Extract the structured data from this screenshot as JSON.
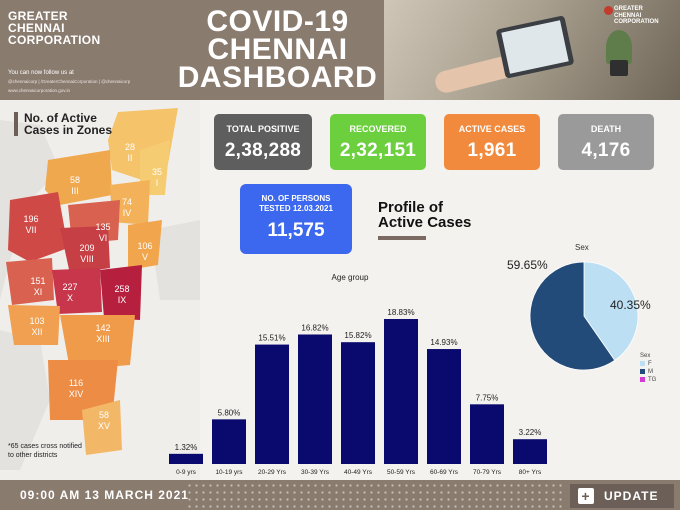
{
  "header": {
    "org_line1": "GREATER",
    "org_line2": "CHENNAI",
    "org_line3": "CORPORATION",
    "follow_text": "You can now follow us at",
    "social_handles": "@chennaicorp  |  /GreaterChennaiCorporation  |  @chennaicorp",
    "website": "www.chennaicorporation.gov.in",
    "title_line1": "COVID-19",
    "title_line2": "CHENNAI",
    "title_line3": "DASHBOARD",
    "corner_logo_line1": "GREATER",
    "corner_logo_line2": "CHENNAI",
    "corner_logo_line3": "CORPORATION"
  },
  "map": {
    "title": "No. of Active Cases in Zones",
    "note": "*65 cases cross notified to other districts",
    "zones": [
      {
        "num": "28",
        "name": "II"
      },
      {
        "num": "35",
        "name": "I"
      },
      {
        "num": "58",
        "name": "III"
      },
      {
        "num": "74",
        "name": "IV"
      },
      {
        "num": "196",
        "name": "VII"
      },
      {
        "num": "135",
        "name": "VI"
      },
      {
        "num": "209",
        "name": "VIII"
      },
      {
        "num": "106",
        "name": "V"
      },
      {
        "num": "151",
        "name": "XI"
      },
      {
        "num": "227",
        "name": "X"
      },
      {
        "num": "258",
        "name": "IX"
      },
      {
        "num": "103",
        "name": "XII"
      },
      {
        "num": "142",
        "name": "XIII"
      },
      {
        "num": "116",
        "name": "XIV"
      },
      {
        "num": "58",
        "name": "XV"
      }
    ]
  },
  "stats": {
    "total_positive": {
      "label": "TOTAL POSITIVE",
      "value": "2,38,288",
      "color": "#5e5e5e"
    },
    "recovered": {
      "label": "RECOVERED",
      "value": "2,32,151",
      "color": "#6bcf3e"
    },
    "active": {
      "label": "ACTIVE CASES",
      "value": "1,961",
      "color": "#f18a3c"
    },
    "death": {
      "label": "DEATH",
      "value": "4,176",
      "color": "#9a9a9a"
    },
    "tested": {
      "label_line1": "NO. OF PERSONS",
      "label_line2": "TESTED 12.03.2021",
      "value": "11,575",
      "color": "#3b68ee"
    }
  },
  "profile_title_line1": "Profile of",
  "profile_title_line2": "Active Cases",
  "chart_data": [
    {
      "type": "bar",
      "title": "Age group",
      "categories": [
        "0-9 yrs",
        "10-19 yrs",
        "20-29 Yrs",
        "30-39 Yrs",
        "40-49 Yrs",
        "50-59 Yrs",
        "60-69 Yrs",
        "70-79 Yrs",
        "80+ Yrs"
      ],
      "values": [
        1.32,
        5.8,
        15.51,
        16.82,
        15.82,
        18.83,
        14.93,
        7.75,
        3.22
      ],
      "value_labels": [
        "1.32%",
        "5.80%",
        "15.51%",
        "16.82%",
        "15.82%",
        "18.83%",
        "14.93%",
        "7.75%",
        "3.22%"
      ],
      "ylim": [
        0,
        20
      ],
      "color": "#0a0a6e"
    },
    {
      "type": "pie",
      "title": "Sex",
      "slices": [
        {
          "label": "F",
          "value": 40.35,
          "text": "40.35%",
          "color": "#bcdff3"
        },
        {
          "label": "M",
          "value": 59.65,
          "text": "59.65%",
          "color": "#234b7a"
        },
        {
          "label": "TG",
          "value": 0,
          "text": "",
          "color": "#d63ad6"
        }
      ],
      "legend_title": "Sex",
      "legend_position": "right"
    }
  ],
  "footer": {
    "datetime": "09:00 AM 13 MARCH 2021",
    "update_label": "UPDATE",
    "plus_glyph": "+"
  }
}
